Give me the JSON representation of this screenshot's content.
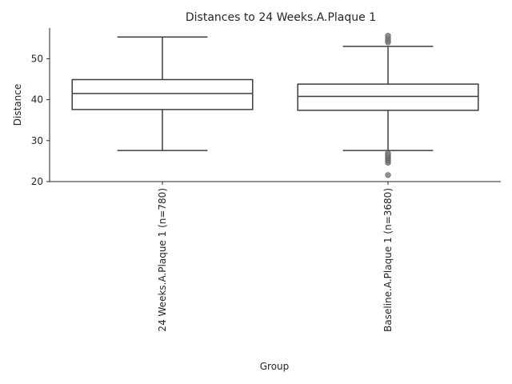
{
  "chart_data": {
    "type": "box",
    "title": "Distances to 24 Weeks.A.Plaque 1",
    "xlabel": "Group",
    "ylabel": "Distance",
    "ylim": [
      20,
      57.5
    ],
    "yticks": [
      20,
      30,
      40,
      50
    ],
    "grid": false,
    "categories": [
      "24 Weeks.A.Plaque 1 (n=780)",
      "Baseline.A.Plaque 1 (n=3680)"
    ],
    "boxes": [
      {
        "label": "24 Weeks.A.Plaque 1 (n=780)",
        "whisker_low": 27.6,
        "q1": 37.6,
        "median": 41.5,
        "q3": 44.9,
        "whisker_high": 55.3,
        "outliers": []
      },
      {
        "label": "Baseline.A.Plaque 1 (n=3680)",
        "whisker_low": 27.6,
        "q1": 37.4,
        "median": 40.8,
        "q3": 43.8,
        "whisker_high": 53.0,
        "outliers": [
          21.6,
          24.6,
          25.1,
          25.5,
          25.8,
          26.1,
          26.3,
          26.6,
          26.9,
          54.0,
          54.5,
          55.0,
          55.6
        ]
      }
    ],
    "colors": {
      "box_edge": "#3d3d3d",
      "box_fill": "#ffffff",
      "flier": "#7f7f7f",
      "axis": "#262626"
    }
  }
}
